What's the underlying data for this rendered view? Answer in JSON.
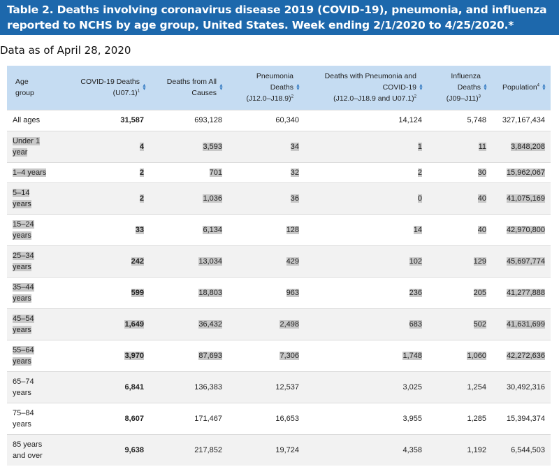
{
  "title": "Table 2. Deaths involving coronavirus disease 2019 (COVID-19), pneumonia, and influenza reported to NCHS by age group, United States. Week ending 2/1/2020 to 4/25/2020.*",
  "subtitle": "Data as of April 28, 2020",
  "columns": [
    {
      "lines": [
        "Age",
        "group"
      ],
      "sup": ""
    },
    {
      "lines": [
        "COVID-19 Deaths",
        "(U07.1)"
      ],
      "sup": "1"
    },
    {
      "lines": [
        "Deaths from All",
        "Causes"
      ],
      "sup": ""
    },
    {
      "lines": [
        "Pneumonia",
        "Deaths",
        "(J12.0–J18.9)"
      ],
      "sup": "2"
    },
    {
      "lines": [
        "Deaths with Pneumonia and",
        "COVID-19",
        "(J12.0–J18.9 and U07.1)"
      ],
      "sup": "2"
    },
    {
      "lines": [
        "Influenza",
        "Deaths",
        "(J09–J11)"
      ],
      "sup": "3"
    },
    {
      "lines": [
        "Population"
      ],
      "sup": "4"
    }
  ],
  "sort_icon": "sort-up-down-icon",
  "rows": [
    {
      "age": [
        "All ages"
      ],
      "covid": "31,587",
      "all": "693,128",
      "pneu": "60,340",
      "pneu_covid": "14,124",
      "flu": "5,748",
      "pop": "327,167,434",
      "highlighted": false
    },
    {
      "age": [
        "Under 1",
        "year"
      ],
      "covid": "4",
      "all": "3,593",
      "pneu": "34",
      "pneu_covid": "1",
      "flu": "11",
      "pop": "3,848,208",
      "highlighted": true
    },
    {
      "age": [
        "1–4 years"
      ],
      "covid": "2",
      "all": "701",
      "pneu": "32",
      "pneu_covid": "2",
      "flu": "30",
      "pop": "15,962,067",
      "highlighted": true
    },
    {
      "age": [
        "5–14",
        "years"
      ],
      "covid": "2",
      "all": "1,036",
      "pneu": "36",
      "pneu_covid": "0",
      "flu": "40",
      "pop": "41,075,169",
      "highlighted": true
    },
    {
      "age": [
        "15–24",
        "years"
      ],
      "covid": "33",
      "all": "6,134",
      "pneu": "128",
      "pneu_covid": "14",
      "flu": "40",
      "pop": "42,970,800",
      "highlighted": true
    },
    {
      "age": [
        "25–34",
        "years"
      ],
      "covid": "242",
      "all": "13,034",
      "pneu": "429",
      "pneu_covid": "102",
      "flu": "129",
      "pop": "45,697,774",
      "highlighted": true
    },
    {
      "age": [
        "35–44",
        "years"
      ],
      "covid": "599",
      "all": "18,803",
      "pneu": "963",
      "pneu_covid": "236",
      "flu": "205",
      "pop": "41,277,888",
      "highlighted": true
    },
    {
      "age": [
        "45–54",
        "years"
      ],
      "covid": "1,649",
      "all": "36,432",
      "pneu": "2,498",
      "pneu_covid": "683",
      "flu": "502",
      "pop": "41,631,699",
      "highlighted": true
    },
    {
      "age": [
        "55–64",
        "years"
      ],
      "covid": "3,970",
      "all": "87,693",
      "pneu": "7,306",
      "pneu_covid": "1,748",
      "flu": "1,060",
      "pop": "42,272,636",
      "highlighted": true
    },
    {
      "age": [
        "65–74",
        "years"
      ],
      "covid": "6,841",
      "all": "136,383",
      "pneu": "12,537",
      "pneu_covid": "3,025",
      "flu": "1,254",
      "pop": "30,492,316",
      "highlighted": false
    },
    {
      "age": [
        "75–84",
        "years"
      ],
      "covid": "8,607",
      "all": "171,467",
      "pneu": "16,653",
      "pneu_covid": "3,955",
      "flu": "1,285",
      "pop": "15,394,374",
      "highlighted": false
    },
    {
      "age": [
        "85 years",
        "and over"
      ],
      "covid": "9,638",
      "all": "217,852",
      "pneu": "19,724",
      "pneu_covid": "4,358",
      "flu": "1,192",
      "pop": "6,544,503",
      "highlighted": false
    }
  ]
}
